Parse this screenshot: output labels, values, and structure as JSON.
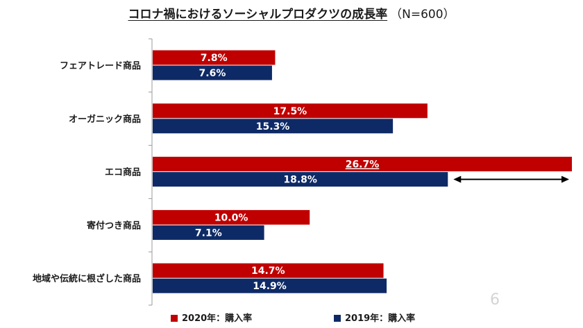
{
  "title": "コロナ禍におけるソーシャルプロダクツの成長率",
  "subtitle": "（N=600）",
  "page_number": "6",
  "colors": {
    "series_2020": "#C00000",
    "series_2019": "#0E2A66",
    "axis": "#999999"
  },
  "chart_data": {
    "type": "bar",
    "orientation": "horizontal",
    "categories": [
      "フェアトレード商品",
      "オーガニック商品",
      "エコ商品",
      "寄付つき商品",
      "地域や伝統に根ざした商品"
    ],
    "series": [
      {
        "name": "2020年：購入率",
        "values": [
          7.8,
          17.5,
          26.7,
          10.0,
          14.7
        ],
        "labels": [
          "7.8%",
          "17.5%",
          "26.7%",
          "10.0%",
          "14.7%"
        ]
      },
      {
        "name": "2019年：購入率",
        "values": [
          7.6,
          15.3,
          18.8,
          7.1,
          14.9
        ],
        "labels": [
          "7.6%",
          "15.3%",
          "18.8%",
          "7.1%",
          "14.9%"
        ]
      }
    ],
    "xlim": [
      0,
      26.7
    ],
    "legend_position": "bottom",
    "grid": false,
    "annotation": "double-headed arrow on エコ商品 spanning from the 2019 bar end to the 2020 bar end"
  }
}
